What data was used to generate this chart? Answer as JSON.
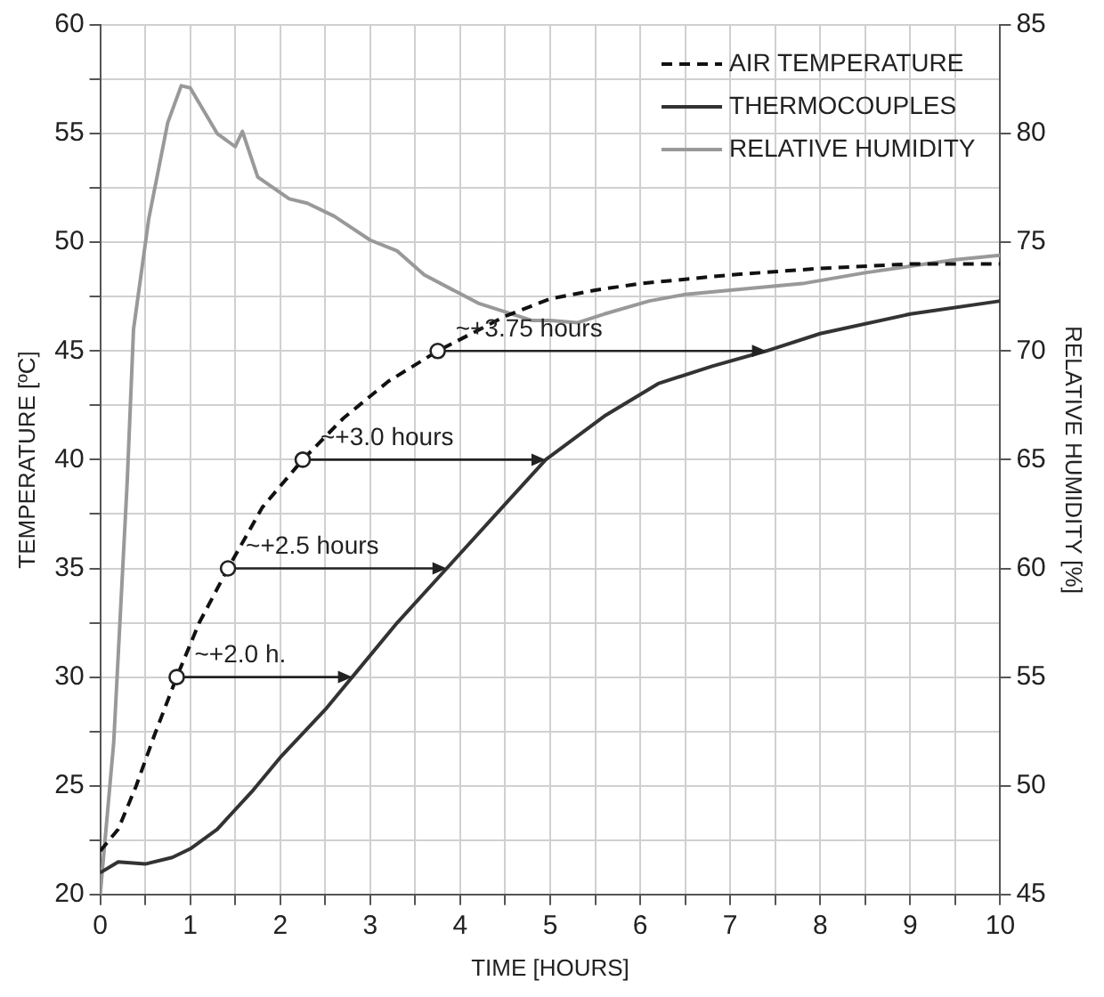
{
  "chart_data": {
    "type": "line",
    "xlabel": "TIME [HOURS]",
    "ylabel": "TEMPERATURE [ºC]",
    "y2label": "RELATIVE HUMIDITY [%]",
    "xlim": [
      0,
      10
    ],
    "xticks": [
      0,
      {
        "value": 0.5,
        "label": null
      },
      1,
      {
        "value": 1.5,
        "label": null
      },
      2,
      {
        "value": 2.5,
        "label": null
      },
      3,
      {
        "value": 3.5,
        "label": null
      },
      4,
      {
        "value": 4.5,
        "label": null
      },
      5,
      {
        "value": 5.5,
        "label": null
      },
      6,
      {
        "value": 6.5,
        "label": null
      },
      7,
      {
        "value": 7.5,
        "label": null
      },
      8,
      {
        "value": 8.5,
        "label": null
      },
      9,
      {
        "value": 9.5,
        "label": null
      },
      10
    ],
    "ylim": [
      20,
      60
    ],
    "yticks": [
      20,
      {
        "value": 22.5,
        "label": null
      },
      25,
      {
        "value": 27.5,
        "label": null
      },
      30,
      {
        "value": 32.5,
        "label": null
      },
      35,
      {
        "value": 37.5,
        "label": null
      },
      40,
      {
        "value": 42.5,
        "label": null
      },
      45,
      {
        "value": 47.5,
        "label": null
      },
      50,
      {
        "value": 52.5,
        "label": null
      },
      55,
      {
        "value": 57.5,
        "label": null
      },
      60
    ],
    "y2lim": [
      45,
      85
    ],
    "y2ticks": [
      45,
      50,
      55,
      60,
      65,
      70,
      75,
      80,
      85
    ],
    "grid": true,
    "legend": "top right",
    "marker": "none",
    "series": [
      {
        "name": "AIR TEMPERATURE",
        "color": "#111111",
        "line_style": "dashed",
        "x": [
          0,
          0.2,
          0.4,
          0.6,
          0.85,
          1.1,
          1.42,
          1.8,
          2.25,
          2.7,
          3.2,
          3.75,
          4.5,
          5,
          5.5,
          6,
          7,
          8,
          9,
          10
        ],
        "values": [
          22,
          23,
          25,
          27.3,
          30,
          32.5,
          35,
          37.8,
          40,
          41.9,
          43.6,
          45,
          46.6,
          47.4,
          47.8,
          48.1,
          48.5,
          48.8,
          49,
          49
        ]
      },
      {
        "name": "THERMOCOUPLES",
        "color": "#333333",
        "line_style": "solid",
        "x": [
          0,
          0.2,
          0.5,
          0.8,
          1,
          1.3,
          1.7,
          2,
          2.5,
          2.8,
          3.3,
          3.85,
          4.4,
          4.95,
          5.6,
          6.2,
          6.8,
          7.4,
          8,
          9,
          10
        ],
        "values": [
          21,
          21.5,
          21.4,
          21.7,
          22.1,
          23,
          24.8,
          26.3,
          28.5,
          30,
          32.5,
          35,
          37.5,
          40,
          42,
          43.5,
          44.3,
          45,
          45.8,
          46.7,
          47.3
        ]
      },
      {
        "name": "RELATIVE HUMIDITY",
        "color": "#999999",
        "line_style": "solid",
        "axis": "y2",
        "x": [
          0,
          0.15,
          0.3,
          0.37,
          0.54,
          0.75,
          0.9,
          1.0,
          1.3,
          1.5,
          1.58,
          1.75,
          2.1,
          2.3,
          2.6,
          3.0,
          3.3,
          3.6,
          4.2,
          4.5,
          4.8,
          5.0,
          5.3,
          5.6,
          6.1,
          6.5,
          7,
          7.8,
          8.5,
          9,
          9.5,
          10
        ],
        "values": [
          45,
          52,
          64,
          71,
          76.1,
          80.5,
          82.2,
          82.1,
          80,
          79.4,
          80.1,
          78,
          77,
          76.8,
          76.2,
          75.1,
          74.6,
          73.5,
          72.2,
          71.8,
          71.4,
          71.4,
          71.3,
          71.7,
          72.3,
          72.6,
          72.8,
          73.1,
          73.6,
          73.9,
          74.2,
          74.4
        ]
      }
    ],
    "annotations": [
      {
        "text": "~+2.0 h.",
        "x": 0.85,
        "y": 30
      },
      {
        "text": "~+2.5 hours",
        "x": 1.42,
        "y": 35
      },
      {
        "text": "~+3.0 hours",
        "x": 2.25,
        "y": 40
      },
      {
        "text": "~+3.75 hours",
        "x": 3.75,
        "y": 45
      }
    ]
  }
}
